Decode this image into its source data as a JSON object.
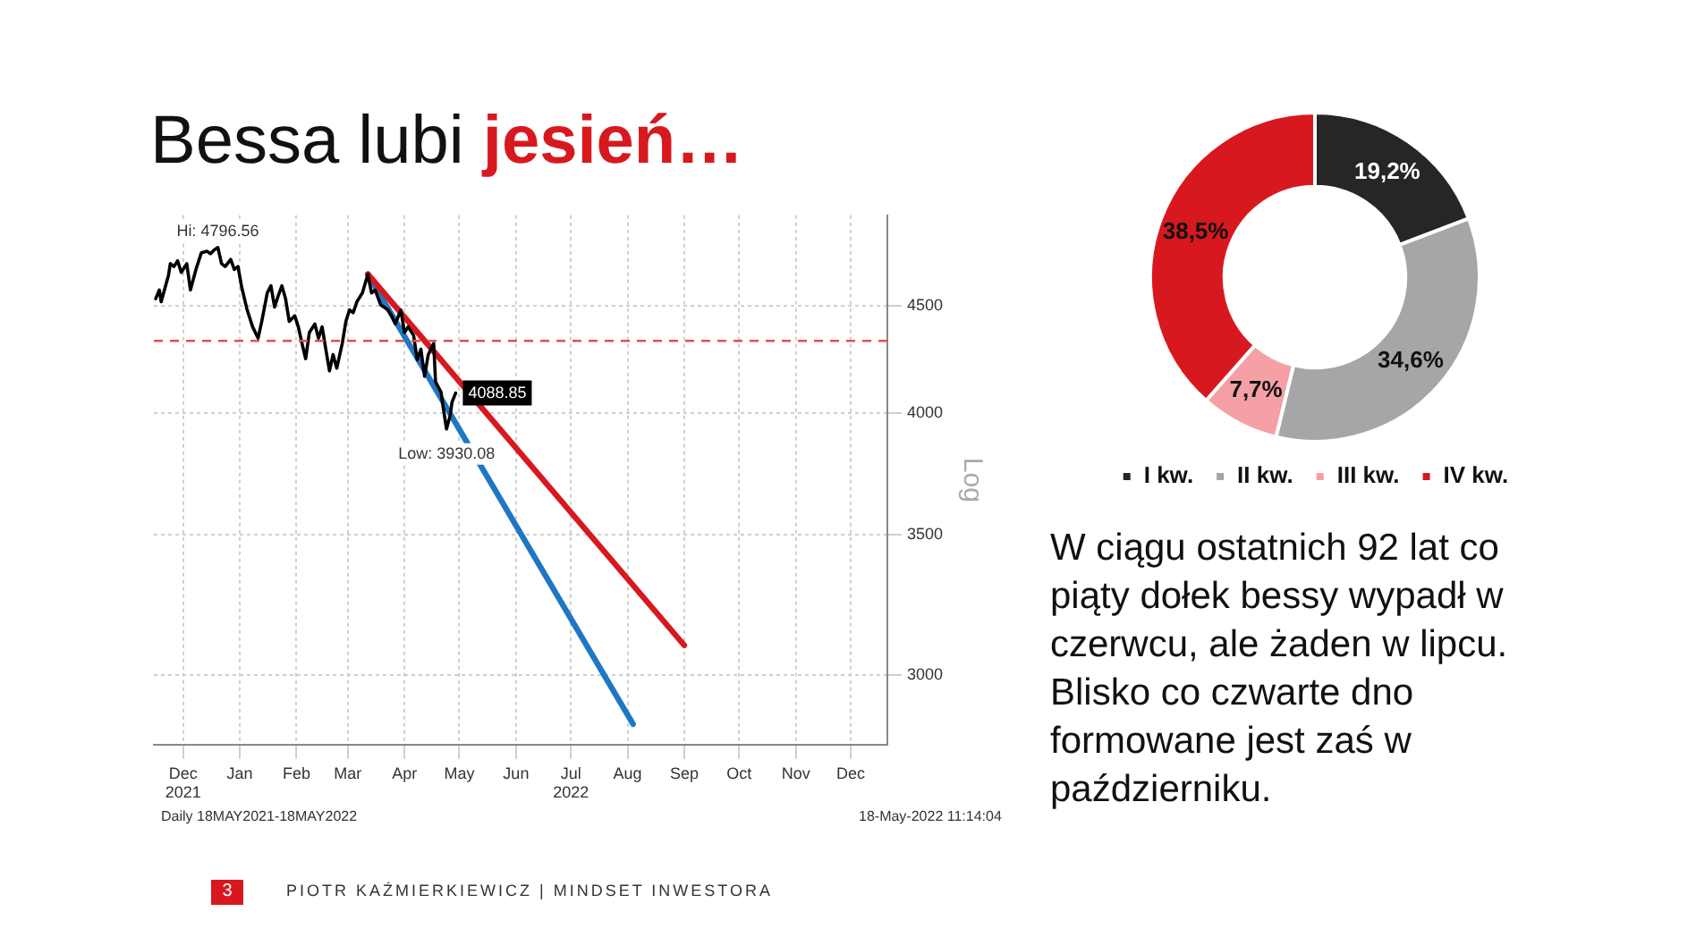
{
  "chart_data": [
    {
      "type": "line",
      "title": "Bessa lubi jesień…",
      "ylabel": "Log",
      "log": true,
      "grid": true,
      "xlim": [
        "2021-11-29",
        "2023-01-04"
      ],
      "xticks": [
        {
          "value": "2021-12-15",
          "label": "Dec\n2021"
        },
        {
          "value": "2022-01-15",
          "label": "Jan"
        },
        {
          "value": "2022-02-15",
          "label": "Feb"
        },
        {
          "value": "2022-03-15",
          "label": "Mar"
        },
        {
          "value": "2022-04-15",
          "label": "Apr"
        },
        {
          "value": "2022-05-15",
          "label": "May"
        },
        {
          "value": "2022-06-15",
          "label": "Jun"
        },
        {
          "value": "2022-07-15",
          "label": "Jul\n2022"
        },
        {
          "value": "2022-08-15",
          "label": "Aug"
        },
        {
          "value": "2022-09-15",
          "label": "Sep"
        },
        {
          "value": "2022-10-15",
          "label": "Oct"
        },
        {
          "value": "2022-11-15",
          "label": "Nov"
        },
        {
          "value": "2022-12-15",
          "label": "Dec"
        }
      ],
      "ylim": [
        2780,
        4970
      ],
      "yticks": [
        3000,
        3500,
        4000,
        4500
      ],
      "series": [
        {
          "color": "#000000",
          "x": [
            "2021-11-30",
            "2021-12-02",
            "2021-12-03",
            "2021-12-07",
            "2021-12-08",
            "2021-12-10",
            "2021-12-12",
            "2021-12-14",
            "2021-12-17",
            "2021-12-19",
            "2021-12-22",
            "2021-12-25",
            "2021-12-28",
            "2021-12-30",
            "2022-01-01",
            "2022-01-03",
            "2022-01-05",
            "2022-01-07",
            "2022-01-10",
            "2022-01-12",
            "2022-01-14",
            "2022-01-16",
            "2022-01-19",
            "2022-01-22",
            "2022-01-25",
            "2022-01-27",
            "2022-01-30",
            "2022-02-01",
            "2022-02-03",
            "2022-02-05",
            "2022-02-07",
            "2022-02-09",
            "2022-02-11",
            "2022-02-14",
            "2022-02-16",
            "2022-02-18",
            "2022-02-20",
            "2022-02-22",
            "2022-02-25",
            "2022-02-27",
            "2022-03-01",
            "2022-03-03",
            "2022-03-05",
            "2022-03-07",
            "2022-03-09",
            "2022-03-12",
            "2022-03-14",
            "2022-03-16",
            "2022-03-18",
            "2022-03-20",
            "2022-03-23",
            "2022-03-26",
            "2022-03-28",
            "2022-03-30",
            "2022-04-02",
            "2022-04-06",
            "2022-04-08",
            "2022-04-10",
            "2022-04-13",
            "2022-04-15",
            "2022-04-17",
            "2022-04-20",
            "2022-04-22",
            "2022-04-24",
            "2022-04-26",
            "2022-04-28",
            "2022-05-01",
            "2022-05-02",
            "2022-05-05",
            "2022-05-06",
            "2022-05-08",
            "2022-05-10",
            "2022-05-11",
            "2022-05-13"
          ],
          "values": [
            4535,
            4579,
            4520,
            4653,
            4713,
            4698,
            4728,
            4668,
            4713,
            4579,
            4683,
            4770,
            4778,
            4765,
            4785,
            4797,
            4713,
            4698,
            4735,
            4683,
            4698,
            4594,
            4480,
            4397,
            4343,
            4424,
            4564,
            4600,
            4494,
            4550,
            4600,
            4535,
            4424,
            4451,
            4397,
            4318,
            4246,
            4370,
            4411,
            4343,
            4397,
            4291,
            4190,
            4265,
            4202,
            4318,
            4424,
            4480,
            4466,
            4520,
            4564,
            4659,
            4564,
            4579,
            4505,
            4480,
            4451,
            4411,
            4480,
            4370,
            4397,
            4357,
            4241,
            4291,
            4165,
            4265,
            4318,
            4140,
            4093,
            4035,
            3931,
            3989,
            4048,
            4089
          ]
        },
        {
          "color": "#d7191f",
          "x": [
            "2022-03-26",
            "2022-09-15"
          ],
          "values": [
            4659,
            3100
          ]
        },
        {
          "color": "#1f77c4",
          "x": [
            "2022-03-26",
            "2022-08-18"
          ],
          "values": [
            4659,
            2843
          ]
        }
      ],
      "ref_lines": [
        {
          "axis": "y",
          "value": 4330,
          "color": "#e05050",
          "line_style": "dashed"
        }
      ],
      "annotations": [
        {
          "text": "Hi: 4796.56",
          "x": "2022-01-03",
          "y": 4797
        },
        {
          "text": "Low: 3930.08",
          "x": "2022-05-08",
          "y": 3931
        },
        {
          "text": "4088.85",
          "x": "2022-05-13",
          "y": 4089
        },
        "Daily 18MAY2021-18MAY2022",
        "18-May-2022 11:14:04"
      ]
    },
    {
      "type": "donut",
      "categories": [
        "I kw.",
        "II kw.",
        "III kw.",
        "IV kw."
      ],
      "values": [
        19.2,
        34.6,
        7.7,
        38.5
      ],
      "colors": [
        "#262626",
        "#a6a6a6",
        "#f4a0a5",
        "#d7191f"
      ],
      "value_labels": [
        "19,2%",
        "34,6%",
        "7,7%",
        "38,5%"
      ],
      "legend": "bottom",
      "annotations": [
        "W ciągu ostatnich 92 lat co piąty dołek bessy wypadł w czerwcu, ale żaden w lipcu. Blisko co czwarte dno formowane jest zaś w październiku.",
        "3",
        "PIOTR KAŹMIERKIEWICZ | MINDSET INWESTORA"
      ]
    }
  ]
}
